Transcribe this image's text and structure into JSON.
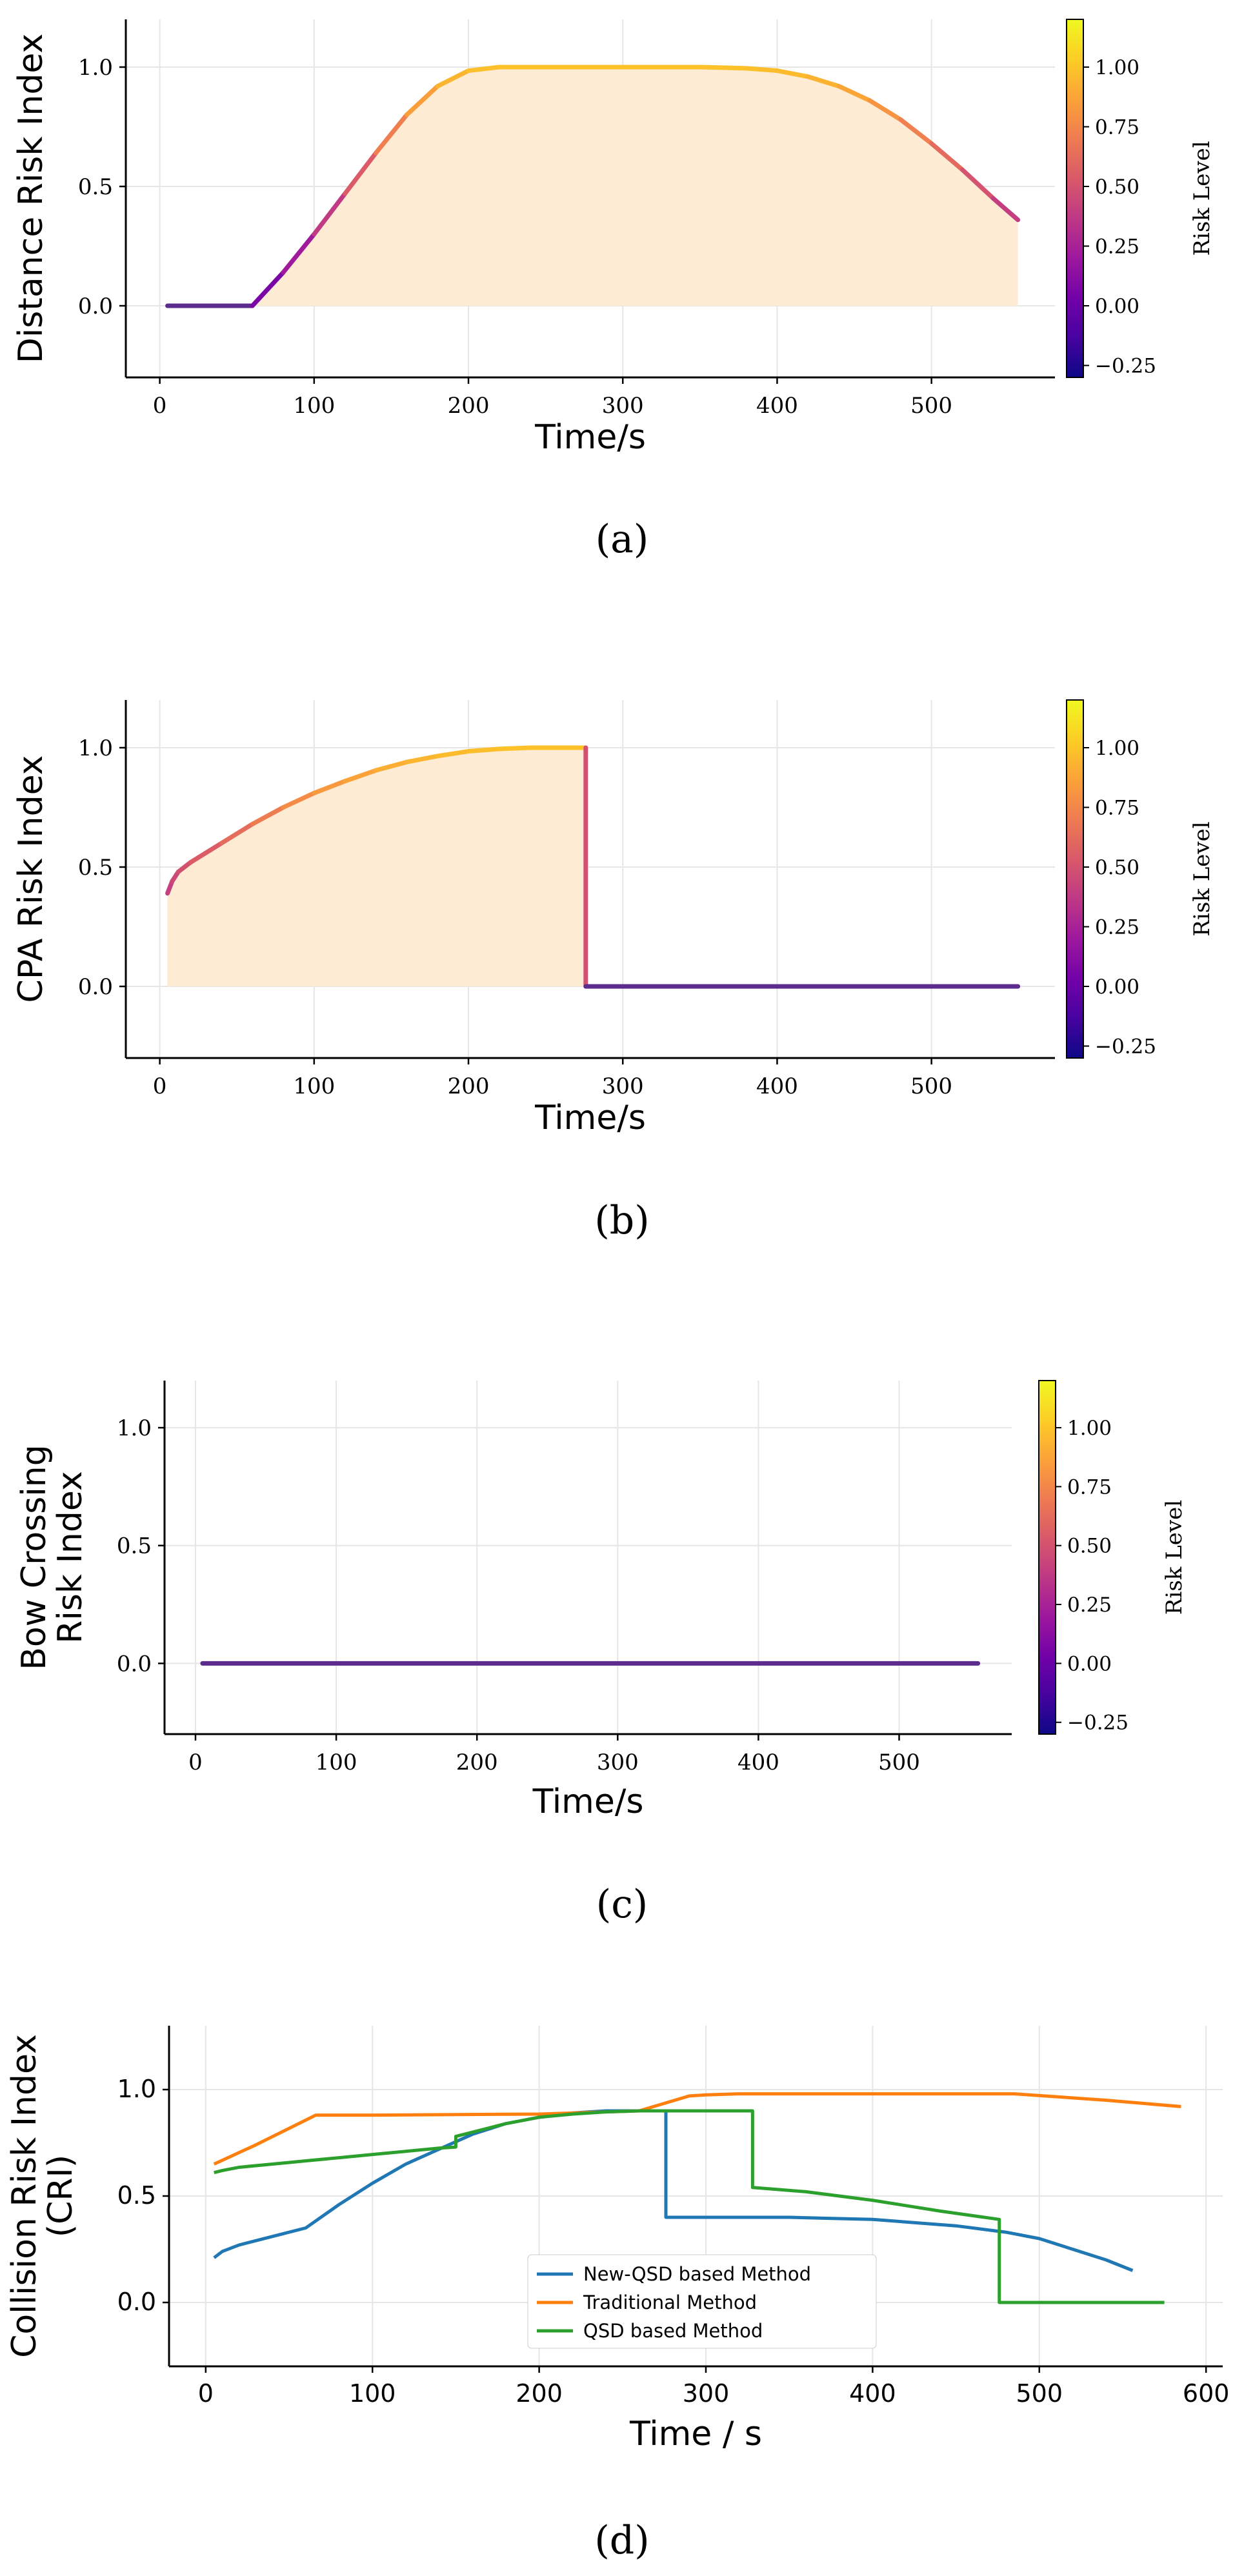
{
  "colors": {
    "fill": "#fdebd3",
    "grid": "#e6e6e6",
    "blue": "#1f77b4",
    "orange": "#ff7f0e",
    "green": "#2ca02c",
    "purple_line": "#5b2c8d",
    "cmap": [
      "#0d0887",
      "#46039f",
      "#7201a8",
      "#9c179e",
      "#bd3786",
      "#d8576b",
      "#ed7953",
      "#fb9f3a",
      "#fdca26",
      "#f0f921"
    ]
  },
  "chart_data": [
    {
      "id": "a",
      "type": "line",
      "caption": "(a)",
      "xlabel": "Time/s",
      "ylabel": "Distance Risk Index",
      "ylabel_lines": [
        "Distance Risk Index"
      ],
      "xlim": [
        -22,
        580
      ],
      "ylim": [
        -0.3,
        1.2
      ],
      "xticks": [
        0,
        100,
        200,
        300,
        400,
        500
      ],
      "xtick_labels": [
        "0",
        "100",
        "200",
        "300",
        "400",
        "500"
      ],
      "yticks": [
        0.0,
        0.5,
        1.0
      ],
      "ytick_labels": [
        "0.0",
        "0.5",
        "1.0"
      ],
      "filled": true,
      "colorbar": {
        "label": "Risk Level",
        "range": [
          -0.3,
          1.2
        ],
        "ticks": [
          -0.25,
          0.0,
          0.25,
          0.5,
          0.75,
          1.0
        ],
        "tick_labels": [
          "−0.25",
          "0.00",
          "0.25",
          "0.50",
          "0.75",
          "1.00"
        ]
      },
      "series": [
        {
          "name": "Distance Risk",
          "x": [
            5,
            30,
            60,
            80,
            100,
            120,
            140,
            160,
            180,
            200,
            220,
            250,
            300,
            350,
            380,
            400,
            420,
            440,
            460,
            480,
            500,
            520,
            540,
            556
          ],
          "y": [
            0,
            0,
            0,
            0.14,
            0.3,
            0.47,
            0.64,
            0.8,
            0.92,
            0.985,
            1.0,
            1.0,
            1.0,
            1.0,
            0.995,
            0.985,
            0.96,
            0.92,
            0.86,
            0.78,
            0.68,
            0.57,
            0.45,
            0.36
          ]
        }
      ]
    },
    {
      "id": "b",
      "type": "line",
      "caption": "(b)",
      "xlabel": "Time/s",
      "ylabel": "CPA Risk Index",
      "ylabel_lines": [
        "CPA Risk Index"
      ],
      "xlim": [
        -22,
        580
      ],
      "ylim": [
        -0.3,
        1.2
      ],
      "xticks": [
        0,
        100,
        200,
        300,
        400,
        500
      ],
      "xtick_labels": [
        "0",
        "100",
        "200",
        "300",
        "400",
        "500"
      ],
      "yticks": [
        0.0,
        0.5,
        1.0
      ],
      "ytick_labels": [
        "0.0",
        "0.5",
        "1.0"
      ],
      "filled": true,
      "colorbar": {
        "label": "Risk Level",
        "range": [
          -0.3,
          1.2
        ],
        "ticks": [
          -0.25,
          0.0,
          0.25,
          0.5,
          0.75,
          1.0
        ],
        "tick_labels": [
          "−0.25",
          "0.00",
          "0.25",
          "0.50",
          "0.75",
          "1.00"
        ]
      },
      "series": [
        {
          "name": "CPA Risk",
          "x": [
            5,
            8,
            12,
            20,
            40,
            60,
            80,
            100,
            120,
            140,
            160,
            180,
            200,
            220,
            240,
            260,
            273,
            276,
            276,
            300,
            400,
            500,
            556
          ],
          "y": [
            0.39,
            0.44,
            0.48,
            0.52,
            0.6,
            0.68,
            0.75,
            0.81,
            0.86,
            0.905,
            0.94,
            0.965,
            0.985,
            0.995,
            1.0,
            1.0,
            1.0,
            1.0,
            0,
            0,
            0,
            0,
            0
          ]
        }
      ]
    },
    {
      "id": "c",
      "type": "line",
      "caption": "(c)",
      "xlabel": "Time/s",
      "ylabel": "Bow Crossing Risk Index",
      "ylabel_lines": [
        "Bow Crossing",
        "Risk Index"
      ],
      "xlim": [
        -22,
        580
      ],
      "ylim": [
        -0.3,
        1.2
      ],
      "xticks": [
        0,
        100,
        200,
        300,
        400,
        500
      ],
      "xtick_labels": [
        "0",
        "100",
        "200",
        "300",
        "400",
        "500"
      ],
      "yticks": [
        0.0,
        0.5,
        1.0
      ],
      "ytick_labels": [
        "0.0",
        "0.5",
        "1.0"
      ],
      "filled": false,
      "colorbar": {
        "label": "Risk Level",
        "range": [
          -0.3,
          1.2
        ],
        "ticks": [
          -0.25,
          0.0,
          0.25,
          0.5,
          0.75,
          1.0
        ],
        "tick_labels": [
          "−0.25",
          "0.00",
          "0.25",
          "0.50",
          "0.75",
          "1.00"
        ]
      },
      "series": [
        {
          "name": "Bow Crossing Risk",
          "x": [
            5,
            556
          ],
          "y": [
            0,
            0
          ]
        }
      ]
    },
    {
      "id": "d",
      "type": "line",
      "caption": "(d)",
      "xlabel": "Time / s",
      "ylabel": "Collision Risk Index (CRI)",
      "ylabel_lines": [
        "Collision Risk Index",
        "(CRI)"
      ],
      "xlim": [
        -22,
        610
      ],
      "ylim": [
        -0.3,
        1.3
      ],
      "xticks": [
        0,
        100,
        200,
        300,
        400,
        500,
        600
      ],
      "xtick_labels": [
        "0",
        "100",
        "200",
        "300",
        "400",
        "500",
        "600"
      ],
      "yticks": [
        0.0,
        0.5,
        1.0
      ],
      "ytick_labels": [
        "0.0",
        "0.5",
        "1.0"
      ],
      "legend_position": "lower-center",
      "series": [
        {
          "name": "New-QSD based Method",
          "color": "#1f77b4",
          "x": [
            5,
            10,
            20,
            40,
            60,
            80,
            100,
            120,
            140,
            160,
            180,
            200,
            220,
            240,
            260,
            276,
            276,
            300,
            350,
            400,
            450,
            480,
            500,
            520,
            540,
            556
          ],
          "y": [
            0.21,
            0.24,
            0.27,
            0.31,
            0.35,
            0.46,
            0.56,
            0.65,
            0.72,
            0.79,
            0.84,
            0.87,
            0.89,
            0.9,
            0.9,
            0.9,
            0.4,
            0.4,
            0.4,
            0.39,
            0.36,
            0.33,
            0.3,
            0.25,
            0.2,
            0.15
          ]
        },
        {
          "name": "Traditional Method",
          "color": "#ff7f0e",
          "x": [
            5,
            30,
            66,
            100,
            200,
            260,
            290,
            300,
            320,
            400,
            485,
            540,
            585
          ],
          "y": [
            0.65,
            0.74,
            0.88,
            0.88,
            0.885,
            0.9,
            0.97,
            0.975,
            0.98,
            0.98,
            0.98,
            0.95,
            0.92
          ],
          "note": "flat segment near 0.88 before rising"
        },
        {
          "name": "QSD based Method",
          "color": "#2ca02c",
          "x": [
            5,
            10,
            20,
            40,
            60,
            80,
            100,
            120,
            140,
            150,
            150,
            160,
            180,
            200,
            220,
            240,
            260,
            280,
            300,
            320,
            328,
            328,
            360,
            400,
            440,
            476,
            476,
            520,
            575
          ],
          "y": [
            0.61,
            0.62,
            0.635,
            0.65,
            0.665,
            0.68,
            0.695,
            0.71,
            0.725,
            0.73,
            0.78,
            0.8,
            0.84,
            0.87,
            0.885,
            0.895,
            0.9,
            0.9,
            0.9,
            0.9,
            0.9,
            0.54,
            0.52,
            0.48,
            0.43,
            0.39,
            0.0,
            0.0,
            0.0
          ]
        }
      ]
    }
  ]
}
